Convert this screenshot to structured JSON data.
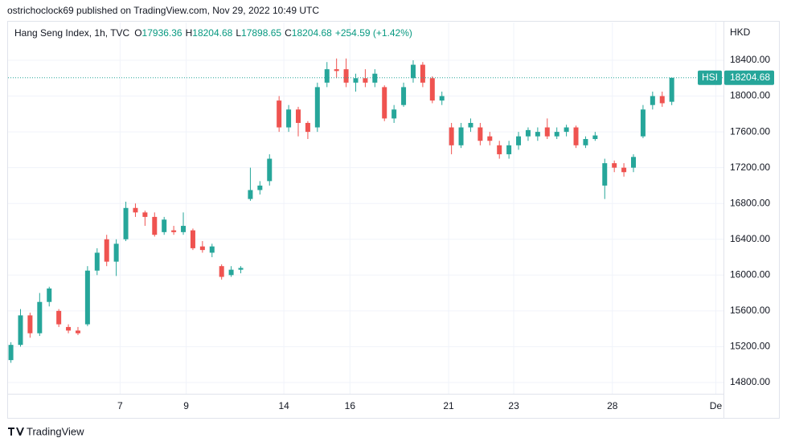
{
  "chart_data": {
    "type": "candlestick",
    "published": "ostrichoclock69 published on TradingView.com, Nov 29, 2022 10:49 UTC",
    "title": "Hang Seng Index, 1h, TVC",
    "ohlc_labels": [
      "O",
      "H",
      "L",
      "C"
    ],
    "ohlc_values": [
      17936.36,
      18204.68,
      17898.65,
      18204.68
    ],
    "change": "+254.59 (+1.42%)",
    "currency": "HKD",
    "brand": "TradingView",
    "last_price": 18204.68,
    "up_color": "#26a69a",
    "down_color": "#ef5350",
    "grid": true,
    "xlim": [
      -0.3,
      74.4
    ],
    "ylim": [
      14674,
      18822
    ],
    "yticks": [
      {
        "value": 14800,
        "label": "14800.00"
      },
      {
        "value": 15200,
        "label": "15200.00"
      },
      {
        "value": 15600,
        "label": "15600.00"
      },
      {
        "value": 16000,
        "label": "16000.00"
      },
      {
        "value": 16400,
        "label": "16400.00"
      },
      {
        "value": 16800,
        "label": "16800.00"
      },
      {
        "value": 17200,
        "label": "17200.00"
      },
      {
        "value": 17600,
        "label": "17600.00"
      },
      {
        "value": 18000,
        "label": "18000.00"
      },
      {
        "value": 18400,
        "label": "18400.00"
      }
    ],
    "xticks": [
      {
        "value": 11.4,
        "label": "7"
      },
      {
        "value": 18.3,
        "label": "9"
      },
      {
        "value": 28.5,
        "label": "14"
      },
      {
        "value": 35.4,
        "label": "16"
      },
      {
        "value": 45.7,
        "label": "21"
      },
      {
        "value": 52.5,
        "label": "23"
      },
      {
        "value": 62.8,
        "label": "28"
      },
      {
        "value": 73.6,
        "label": "De"
      }
    ],
    "series": [
      {
        "name": "HSI",
        "open": [
          15050,
          15220,
          15550,
          15350,
          15700,
          15600,
          15420,
          15380,
          15450,
          16050,
          16400,
          16150,
          16400,
          16750,
          16700,
          16650,
          16480,
          16500,
          16480,
          16500,
          16320,
          16250,
          16100,
          16000,
          16060,
          16850,
          16950,
          17050,
          17950,
          17650,
          17850,
          17700,
          17650,
          18150,
          18300,
          18300,
          18150,
          18200,
          18150,
          18100,
          17750,
          17900,
          18200,
          18350,
          18200,
          17950,
          17650,
          17450,
          17650,
          17650,
          17550,
          17450,
          17350,
          17450,
          17550,
          17550,
          17650,
          17550,
          17600,
          17650,
          17450,
          17520,
          17000,
          17250,
          17200,
          17200,
          17550,
          17900,
          18000,
          17936.36
        ],
        "high": [
          15250,
          15620,
          15580,
          15800,
          15870,
          15620,
          15450,
          15420,
          16100,
          16300,
          16450,
          16400,
          16820,
          16800,
          16720,
          16700,
          16650,
          16550,
          16700,
          16520,
          16380,
          16350,
          16120,
          16100,
          16100,
          17200,
          17050,
          17350,
          18000,
          17900,
          17880,
          17720,
          18150,
          18380,
          18420,
          18420,
          18250,
          18300,
          18300,
          18120,
          17900,
          18150,
          18400,
          18380,
          18220,
          18050,
          17700,
          17700,
          17750,
          17700,
          17600,
          17500,
          17500,
          17600,
          17650,
          17650,
          17750,
          17650,
          17680,
          17670,
          17550,
          17600,
          17300,
          17280,
          17250,
          17350,
          17900,
          18050,
          18050,
          18204.68
        ],
        "low": [
          15020,
          15200,
          15300,
          15320,
          15650,
          15420,
          15350,
          15330,
          15430,
          16000,
          16100,
          15990,
          16380,
          16650,
          16550,
          16430,
          16450,
          16450,
          16450,
          16280,
          16250,
          16200,
          15950,
          15980,
          16020,
          16830,
          16900,
          17000,
          17600,
          17600,
          17550,
          17520,
          17600,
          18100,
          18200,
          18100,
          18050,
          18100,
          18100,
          17720,
          17700,
          17880,
          18150,
          18100,
          17920,
          17900,
          17350,
          17420,
          17600,
          17450,
          17450,
          17300,
          17300,
          17400,
          17500,
          17500,
          17520,
          17520,
          17550,
          17420,
          17420,
          17500,
          16850,
          17150,
          17100,
          17150,
          17530,
          17850,
          17880,
          17898.65
        ],
        "close": [
          15220,
          15550,
          15350,
          15700,
          15850,
          15450,
          15380,
          15350,
          16050,
          16250,
          16150,
          16350,
          16750,
          16700,
          16650,
          16450,
          16620,
          16480,
          16550,
          16300,
          16280,
          16320,
          15980,
          16060,
          16080,
          16950,
          17000,
          17300,
          17650,
          17850,
          17700,
          17600,
          18100,
          18300,
          18280,
          18150,
          18200,
          18150,
          18250,
          17750,
          17850,
          18100,
          18350,
          18150,
          17950,
          18000,
          17450,
          17650,
          17700,
          17500,
          17500,
          17350,
          17450,
          17550,
          17620,
          17600,
          17550,
          17600,
          17650,
          17450,
          17520,
          17560,
          17250,
          17200,
          17150,
          17320,
          17850,
          18000,
          17920,
          18204.68
        ]
      }
    ]
  }
}
